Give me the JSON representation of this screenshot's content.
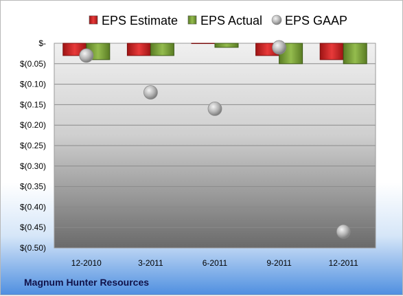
{
  "chart_data": {
    "type": "bar",
    "categories": [
      "12-2010",
      "3-2011",
      "6-2011",
      "9-2011",
      "12-2011"
    ],
    "series": [
      {
        "name": "EPS Estimate",
        "values": [
          -0.03,
          -0.03,
          0.0,
          -0.03,
          -0.04
        ],
        "color": "#d42a2a"
      },
      {
        "name": "EPS Actual",
        "values": [
          -0.04,
          -0.03,
          -0.01,
          -0.05,
          -0.05
        ],
        "color": "#7fa43a"
      },
      {
        "name": "EPS GAAP",
        "values": [
          -0.03,
          -0.12,
          -0.16,
          -0.01,
          -0.46
        ],
        "color": "#b0b0b0",
        "marker": "sphere"
      }
    ],
    "yticks": [
      {
        "value": 0,
        "label": "$-"
      },
      {
        "value": -0.05,
        "label": "$(0.05)"
      },
      {
        "value": -0.1,
        "label": "$(0.10)"
      },
      {
        "value": -0.15,
        "label": "$(0.15)"
      },
      {
        "value": -0.2,
        "label": "$(0.20)"
      },
      {
        "value": -0.25,
        "label": "$(0.25)"
      },
      {
        "value": -0.3,
        "label": "$(0.30)"
      },
      {
        "value": -0.35,
        "label": "$(0.35)"
      },
      {
        "value": -0.4,
        "label": "$(0.40)"
      },
      {
        "value": -0.45,
        "label": "$(0.45)"
      },
      {
        "value": -0.5,
        "label": "$(0.50)"
      }
    ],
    "ylim": [
      -0.5,
      0
    ],
    "grid": true,
    "legend_position": "top"
  },
  "caption": "Magnum Hunter Resources"
}
